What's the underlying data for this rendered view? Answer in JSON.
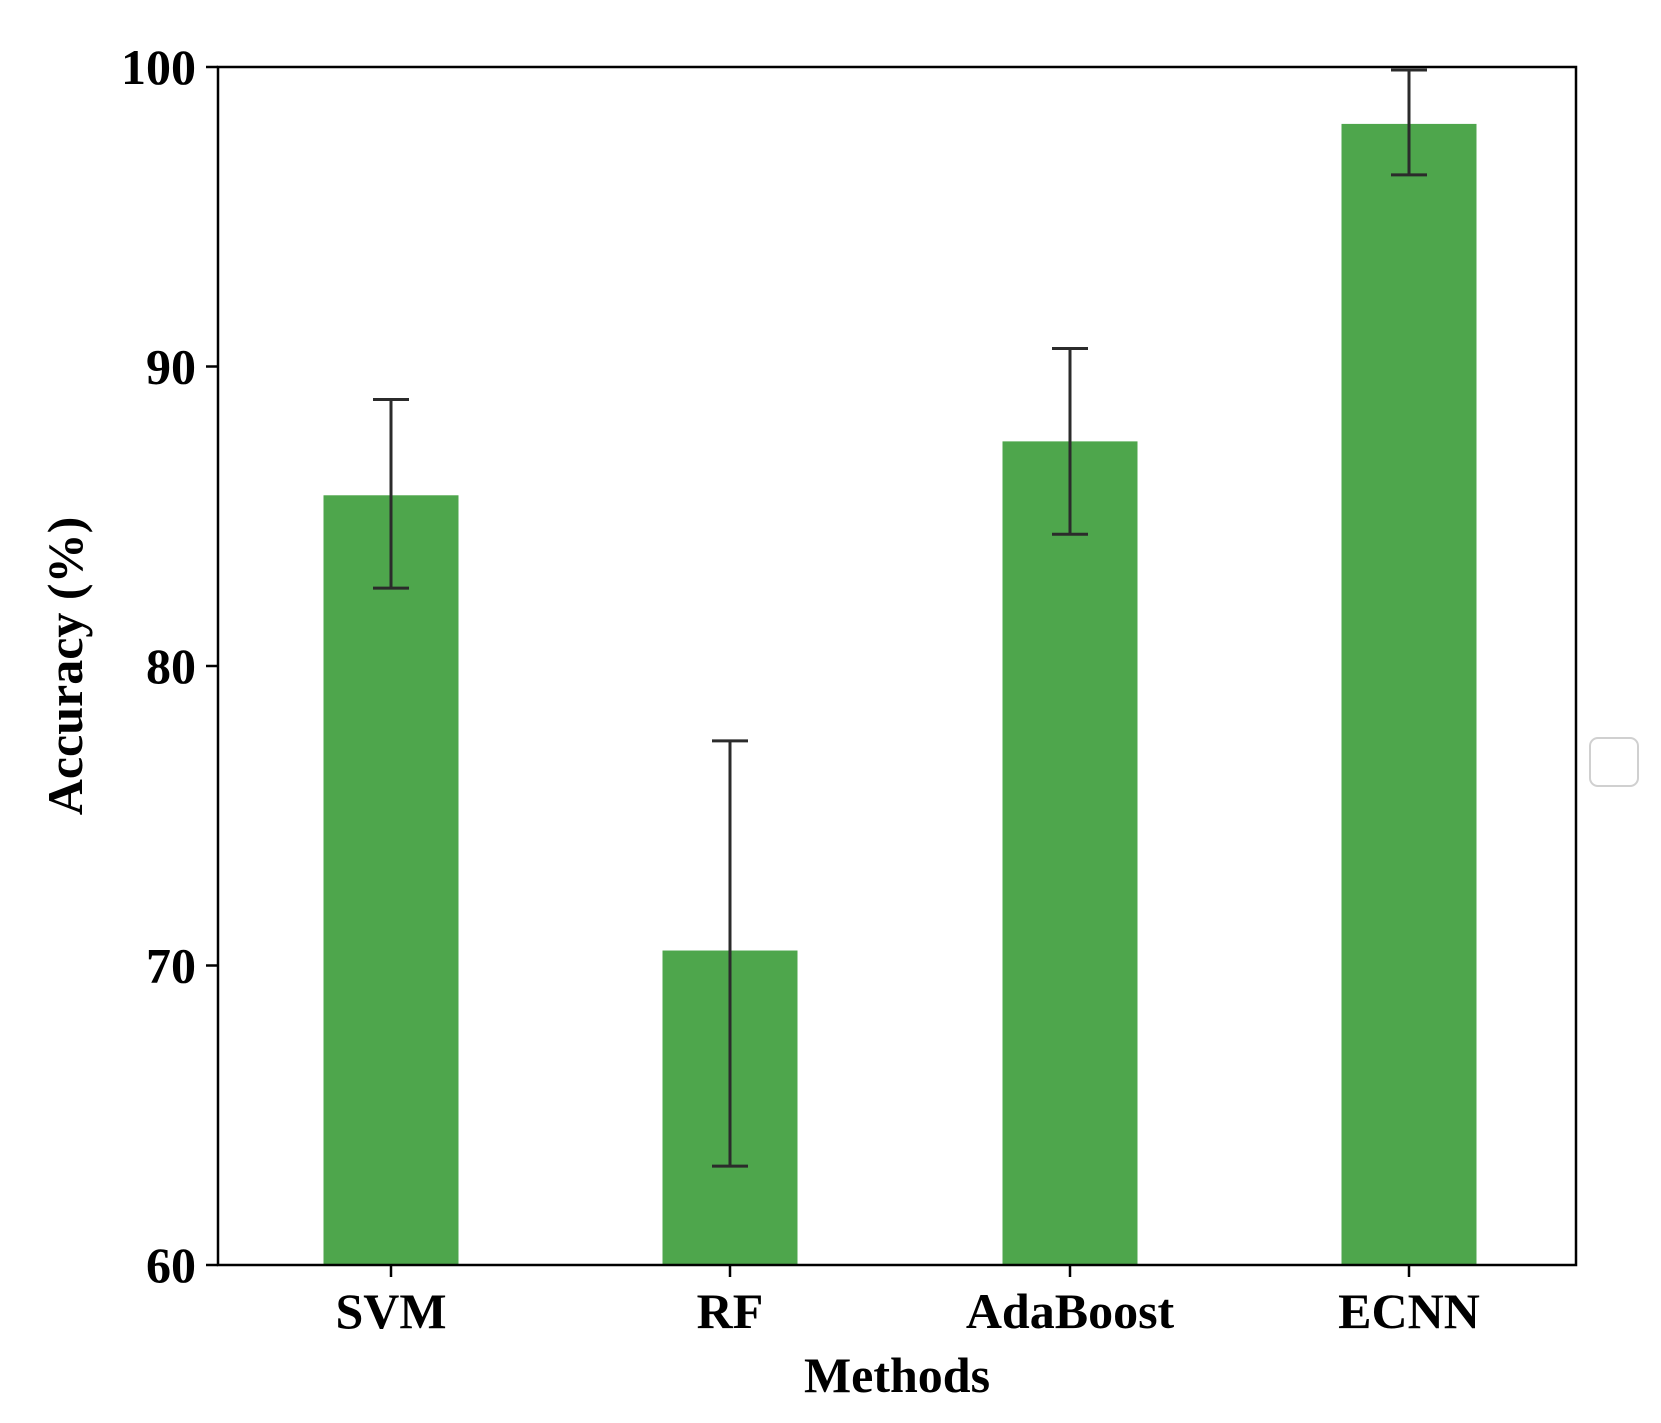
{
  "chart_data": {
    "type": "bar",
    "title": "",
    "xlabel": "Methods",
    "ylabel": "Accuracy (%)",
    "categories": [
      "SVM",
      "RF",
      "AdaBoost",
      "ECNN"
    ],
    "values": [
      85.7,
      70.5,
      87.5,
      98.1
    ],
    "error_low": [
      82.6,
      63.3,
      84.4,
      96.4
    ],
    "error_high": [
      88.9,
      77.5,
      90.6,
      99.9
    ],
    "ylim": [
      60,
      100
    ],
    "yticks": [
      "60",
      "70",
      "80",
      "90",
      "100"
    ],
    "bar_color": "#4ea64c",
    "error_color": "#2b2b2b",
    "grid": false,
    "legend": "right (empty)"
  }
}
